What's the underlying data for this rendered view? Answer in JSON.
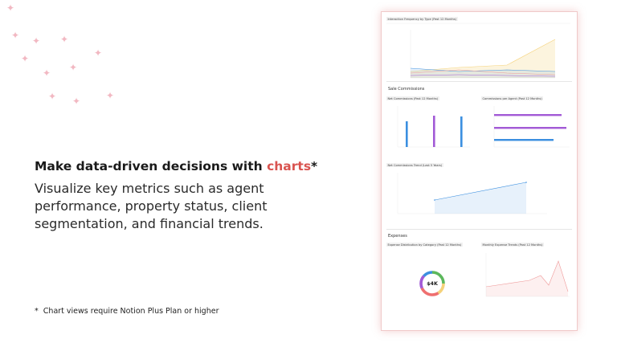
{
  "headline": {
    "prefix": "Make data-driven decisions with ",
    "accent": "charts",
    "suffix": "*"
  },
  "body": "Visualize key metrics such as agent performance, property status, client segmentation, and financial trends.",
  "footnote": {
    "bullet": "*",
    "text": "Chart views require  Notion Plus Plan or higher"
  },
  "colors": {
    "accent": "#d9534f",
    "sparkle": "#f2b8c2",
    "blue": "#3b8fe0",
    "purple": "#a25ad6",
    "pink": "#ef9a9a",
    "yellow": "#f5d27a",
    "green": "#5cb85c"
  },
  "screenshot": {
    "interaction_card": {
      "title": "Interaction Frequency by Type (Past 12 Months)"
    },
    "sale_commissions": {
      "title": "Sale Commissions"
    },
    "net_commissions_card": {
      "title": "Net Commissions (Past 12 Months)"
    },
    "commissions_agent_card": {
      "title": "Commissions per Agent (Past 12 Months)"
    },
    "trend_card": {
      "title": "Net Commissions Trend (Last 5 Years)"
    },
    "expenses": {
      "title": "Expenses"
    },
    "expense_category_card": {
      "title": "Expense Distribution by Category (Past 12 Months)"
    },
    "monthly_expense_card": {
      "title": "Monthly Expense Trends (Past 12 Months)"
    },
    "donut": {
      "value": "$4K"
    }
  }
}
